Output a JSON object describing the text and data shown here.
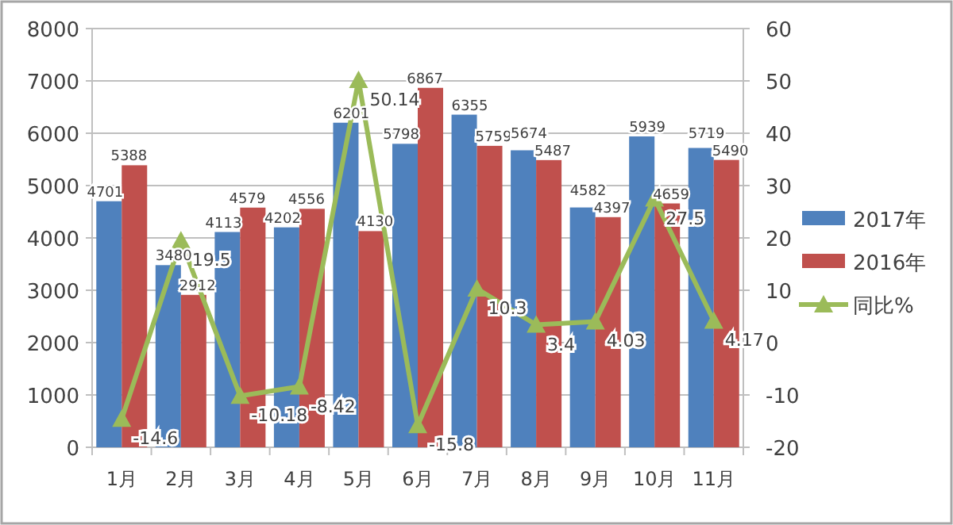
{
  "chart_data": {
    "type": "bar",
    "categories": [
      "1月",
      "2月",
      "3月",
      "4月",
      "5月",
      "6月",
      "7月",
      "8月",
      "9月",
      "10月",
      "11月"
    ],
    "series": [
      {
        "name": "2017年",
        "color": "#4f81bd",
        "values": [
          4701,
          3480,
          4113,
          4202,
          6201,
          5798,
          6355,
          5674,
          4582,
          5939,
          5719
        ]
      },
      {
        "name": "2016年",
        "color": "#c0504d",
        "values": [
          5388,
          2912,
          4579,
          4556,
          4130,
          6867,
          5759,
          5487,
          4397,
          4659,
          5490
        ]
      },
      {
        "name": "同比%",
        "type": "line",
        "axis": "y2",
        "color": "#9bbb59",
        "marker": "triangle",
        "values": [
          -14.6,
          19.5,
          -10.18,
          -8.42,
          50.14,
          -15.8,
          10.3,
          3.4,
          4.03,
          27.5,
          4.17
        ]
      }
    ],
    "ylim": [
      0,
      8000
    ],
    "yticks": [
      0,
      1000,
      2000,
      3000,
      4000,
      5000,
      6000,
      7000,
      8000
    ],
    "y2lim": [
      -20,
      60
    ],
    "y2ticks": [
      -20,
      -10,
      0,
      10,
      20,
      30,
      40,
      50,
      60
    ],
    "grid": "y",
    "legend": "right",
    "data_labels": true
  }
}
